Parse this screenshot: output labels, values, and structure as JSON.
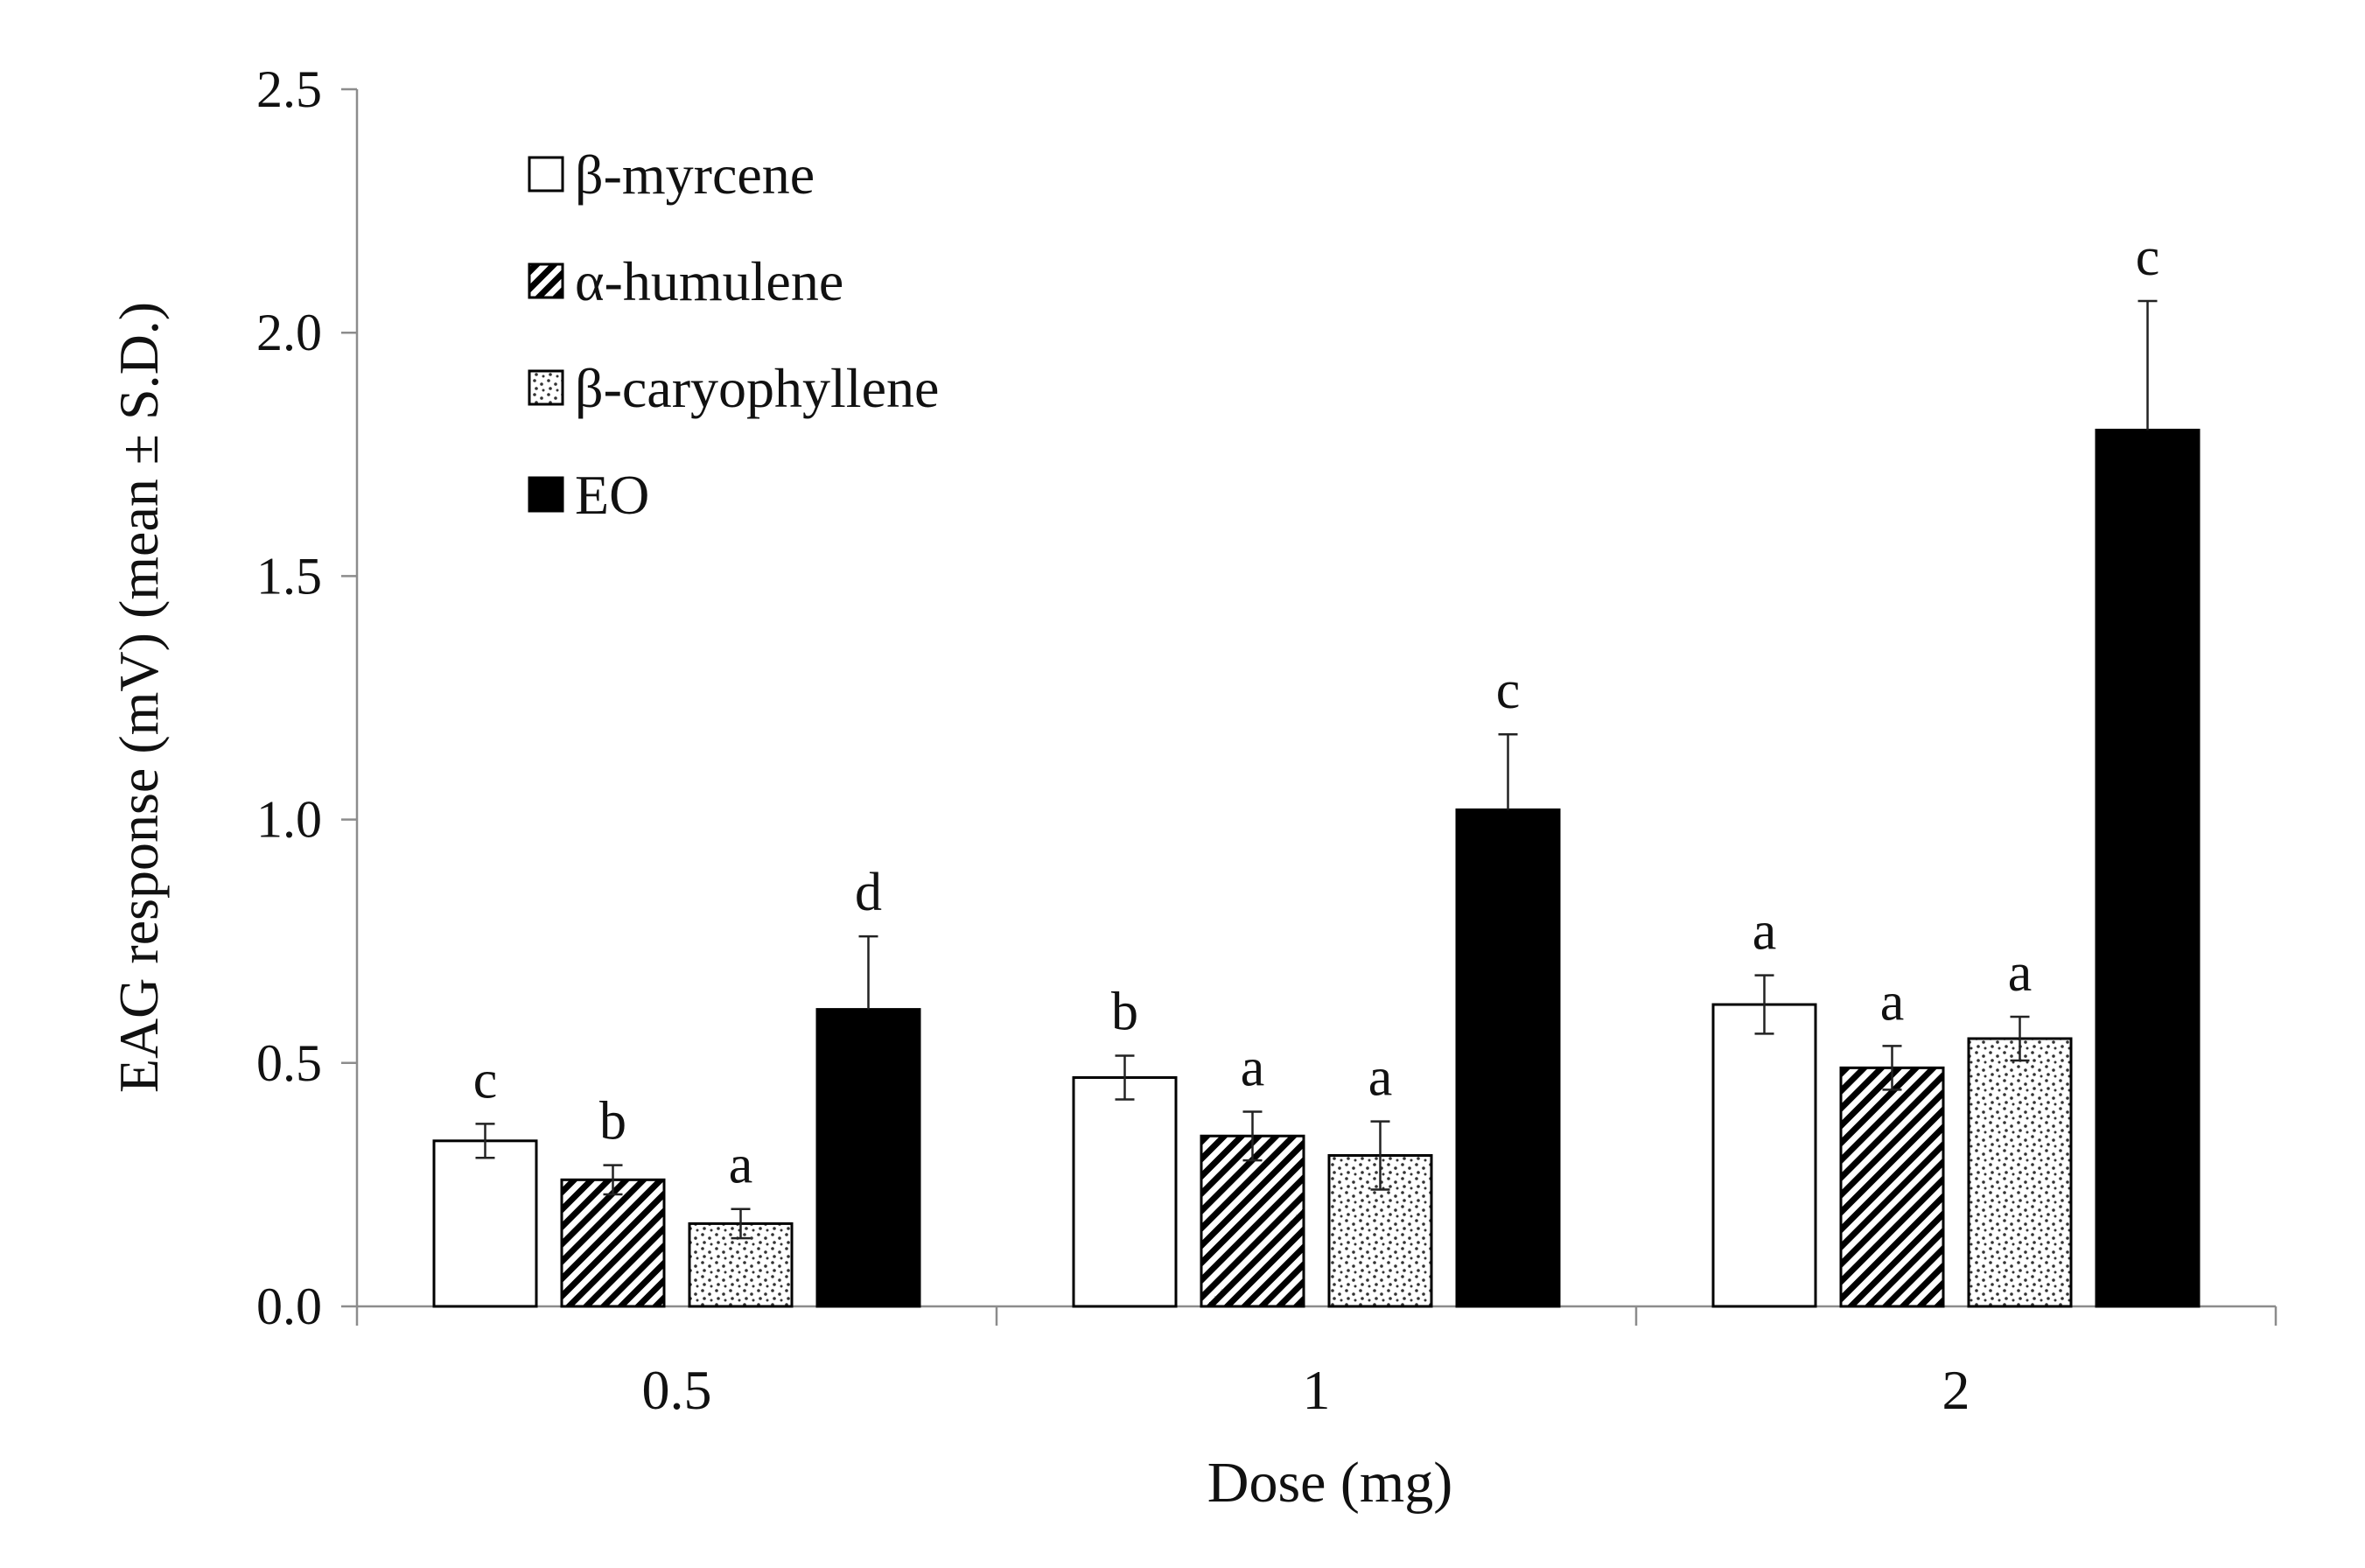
{
  "chart_data": {
    "type": "bar",
    "title": "",
    "xlabel": "Dose (mg)",
    "ylabel": "EAG response (mV) (mean ± S.D.)",
    "categories": [
      "0.5",
      "1",
      "2"
    ],
    "ylim": [
      0,
      2.5
    ],
    "yticks": [
      "0.0",
      "0.5",
      "1.0",
      "1.5",
      "2.0",
      "2.5"
    ],
    "ytick_values": [
      0,
      0.5,
      1.0,
      1.5,
      2.0,
      2.5
    ],
    "grid": false,
    "legend_position": "top-left",
    "series": [
      {
        "name": "β-myrcene",
        "pattern": "white",
        "values": [
          0.34,
          0.47,
          0.62
        ],
        "errors": [
          0.035,
          0.045,
          0.06
        ],
        "letters": [
          "c",
          "b",
          "a"
        ]
      },
      {
        "name": "α-humulene",
        "pattern": "hatched",
        "values": [
          0.26,
          0.35,
          0.49
        ],
        "errors": [
          0.03,
          0.05,
          0.045
        ],
        "letters": [
          "b",
          "a",
          "a"
        ]
      },
      {
        "name": "β-caryophyllene",
        "pattern": "dotted",
        "values": [
          0.17,
          0.31,
          0.55
        ],
        "errors": [
          0.03,
          0.07,
          0.045
        ],
        "letters": [
          "a",
          "a",
          "a"
        ]
      },
      {
        "name": "EO",
        "pattern": "black",
        "values": [
          0.61,
          1.02,
          1.8
        ],
        "errors": [
          0.15,
          0.155,
          0.265
        ],
        "letters": [
          "d",
          "c",
          "c"
        ]
      }
    ]
  }
}
